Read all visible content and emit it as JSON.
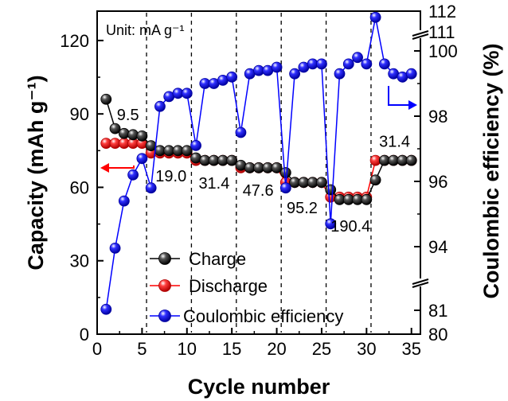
{
  "chart_data": {
    "type": "line",
    "annotation": "Unit: mA g⁻¹",
    "xlabel": "Cycle number",
    "ylabel_left": "Capacity (mAh g⁻¹)",
    "ylabel_right": "Coulombic efficiency (%)",
    "xlim": [
      0,
      36
    ],
    "xticks": [
      "0",
      "5",
      "10",
      "15",
      "20",
      "25",
      "30",
      "35"
    ],
    "ylim_left": [
      0,
      132
    ],
    "yticks_left": [
      "0",
      "30",
      "60",
      "90",
      "120"
    ],
    "yticks_right": [
      "80",
      "81",
      "94",
      "96",
      "98",
      "100",
      "111",
      "112"
    ],
    "grid": false,
    "legend_position": "lower-left",
    "rate_labels": [
      {
        "text": "9.5",
        "x": 2.2,
        "y": 87.5
      },
      {
        "text": "19.0",
        "x": 6.5,
        "y": 62.5
      },
      {
        "text": "31.4",
        "x": 11.3,
        "y": 59.5
      },
      {
        "text": "47.6",
        "x": 16.2,
        "y": 56.5
      },
      {
        "text": "95.2",
        "x": 21.1,
        "y": 49.5
      },
      {
        "text": "190.4",
        "x": 26.0,
        "y": 42
      },
      {
        "text": "31.4",
        "x": 31.4,
        "y": 76.5
      }
    ],
    "series": [
      {
        "name": "Charge",
        "axis": "left",
        "color": "#000000",
        "x": [
          1,
          2,
          3,
          4,
          5,
          6,
          7,
          8,
          9,
          10,
          11,
          12,
          13,
          14,
          15,
          16,
          17,
          18,
          19,
          20,
          21,
          22,
          23,
          24,
          25,
          26,
          27,
          28,
          29,
          30,
          31,
          32,
          33,
          34,
          35
        ],
        "y": [
          96,
          84,
          82,
          81.5,
          81,
          77,
          75,
          75,
          75,
          75,
          72,
          71,
          71,
          71,
          71,
          69,
          68,
          68,
          68,
          68,
          66,
          62,
          62,
          62,
          62,
          59,
          55,
          55,
          55,
          55,
          63,
          71,
          71,
          71,
          71
        ]
      },
      {
        "name": "Discharge",
        "axis": "left",
        "color": "#ff0000",
        "x": [
          1,
          2,
          3,
          4,
          5,
          6,
          7,
          8,
          9,
          10,
          11,
          12,
          13,
          14,
          15,
          16,
          17,
          18,
          19,
          20,
          21,
          22,
          23,
          24,
          25,
          26,
          27,
          28,
          29,
          30,
          31,
          32,
          33,
          34,
          35
        ],
        "y": [
          78,
          78,
          78,
          78,
          78,
          74,
          74,
          74,
          74,
          74,
          71,
          71,
          71,
          71,
          71,
          68,
          68,
          68,
          68,
          68,
          62,
          62,
          62,
          62,
          62,
          56,
          56,
          56,
          56,
          56,
          71,
          71,
          71,
          71,
          71
        ]
      },
      {
        "name": "Coulombic efficiency",
        "axis": "right",
        "color": "#0000ff",
        "x": [
          1,
          2,
          3,
          4,
          5,
          6,
          7,
          8,
          9,
          10,
          11,
          12,
          13,
          14,
          15,
          16,
          17,
          18,
          19,
          20,
          21,
          22,
          23,
          24,
          25,
          26,
          27,
          28,
          29,
          30,
          31,
          32,
          33,
          34,
          35
        ],
        "y": [
          81.2,
          93.7,
          95.4,
          96.2,
          96.7,
          95.8,
          98.3,
          98.6,
          98.7,
          98.7,
          97.1,
          99.0,
          99.0,
          99.1,
          99.2,
          97.5,
          99.3,
          99.4,
          99.4,
          99.5,
          95.8,
          99.3,
          99.5,
          99.6,
          99.6,
          94.7,
          99.3,
          99.6,
          99.8,
          99.6,
          111.7,
          99.6,
          99.3,
          99.2,
          99.3
        ]
      }
    ]
  }
}
